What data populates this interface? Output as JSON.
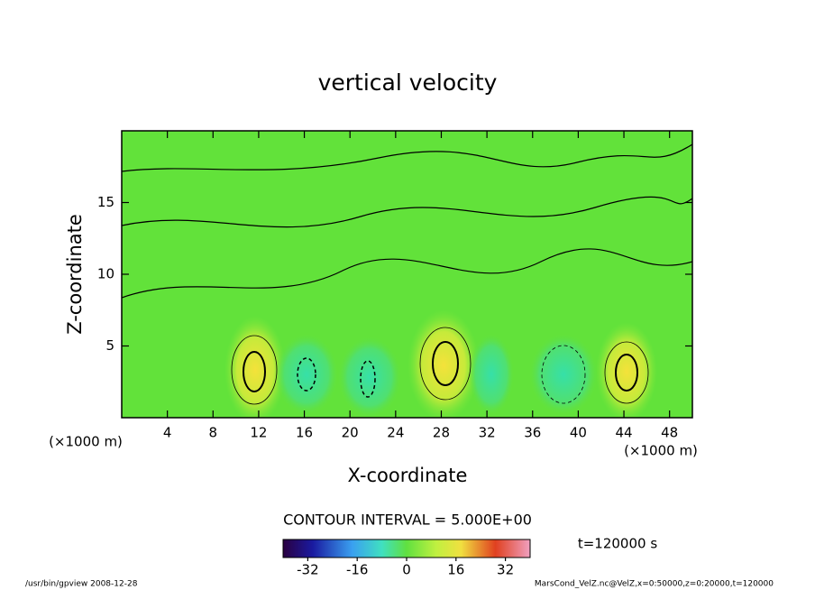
{
  "chart_data": {
    "type": "contour",
    "title": "vertical velocity",
    "x_label": "X-coordinate",
    "y_label": "Z-coordinate",
    "x_unit_left": "(×1000 m)",
    "x_unit_right": "(×1000 m)",
    "xlim": [
      0,
      50
    ],
    "xticks": [
      4,
      8,
      12,
      16,
      20,
      24,
      28,
      32,
      36,
      40,
      44,
      48
    ],
    "ylim": [
      0,
      20
    ],
    "yticks": [
      5,
      10,
      15
    ],
    "contour_interval": "CONTOUR INTERVAL = 5.000E+00",
    "time_label": "t=120000 s",
    "colorbar_lim": [
      -40,
      40
    ],
    "colorbar_ticks": [
      -32,
      -16,
      0,
      16,
      32
    ],
    "footer_left": "/usr/bin/gpview   2008-12-28",
    "footer_right": "MarsCond_VelZ.nc@VelZ,x=0:50000,z=0:20000,t=120000"
  }
}
